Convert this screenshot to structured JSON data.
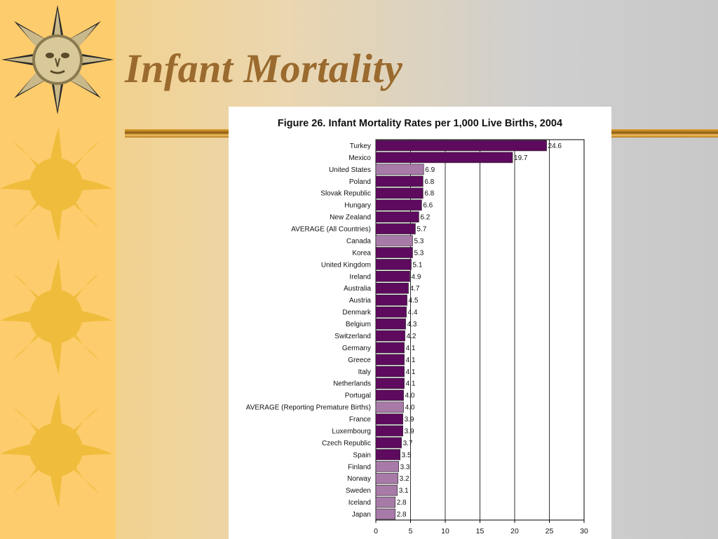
{
  "slide": {
    "title": "Infant Mortality"
  },
  "figure": {
    "title": "Figure 26.  Infant Mortality Rates per 1,000 Live Births, 2004"
  },
  "colors": {
    "dark_bar": "#5e0a5e",
    "light_bar": "#a87aa8",
    "title": "#9a6a2e",
    "sun": "#f0bc3c"
  },
  "chart_data": {
    "type": "bar",
    "orientation": "horizontal",
    "title": "Figure 26.  Infant Mortality Rates per 1,000 Live Births, 2004",
    "xlim": [
      0,
      30
    ],
    "x_ticks": [
      0,
      5,
      10,
      15,
      20,
      25,
      30
    ],
    "grid": true,
    "data_labels": true,
    "categories": [
      "Turkey",
      "Mexico",
      "United States",
      "Poland",
      "Slovak Republic",
      "Hungary",
      "New Zealand",
      "AVERAGE (All Countries)",
      "Canada",
      "Korea",
      "United Kingdom",
      "Ireland",
      "Australia",
      "Austria",
      "Denmark",
      "Belgium",
      "Switzerland",
      "Germany",
      "Greece",
      "Italy",
      "Netherlands",
      "Portugal",
      "AVERAGE (Reporting Premature Births)",
      "France",
      "Luxembourg",
      "Czech Republic",
      "Spain",
      "Finland",
      "Norway",
      "Sweden",
      "Iceland",
      "Japan"
    ],
    "values": [
      24.6,
      19.7,
      6.9,
      6.8,
      6.8,
      6.6,
      6.2,
      5.7,
      5.3,
      5.3,
      5.1,
      4.9,
      4.7,
      4.5,
      4.4,
      4.3,
      4.2,
      4.1,
      4.1,
      4.1,
      4.1,
      4.0,
      4.0,
      3.9,
      3.9,
      3.7,
      3.5,
      3.3,
      3.2,
      3.1,
      2.8,
      2.8
    ],
    "value_labels": [
      "24.6",
      "19.7",
      "6.9",
      "6.8",
      "6.8",
      "6.6",
      "6.2",
      "5.7",
      "5.3",
      "5.3",
      "5.1",
      "4.9",
      "4.7",
      "4.5",
      "4.4",
      "4.3",
      "4.2",
      "4.1",
      "4.1",
      "4.1",
      "4.1",
      "4.0",
      "4.0",
      "3.9",
      "3.9",
      "3.7",
      "3.5",
      "3.3",
      "3.2",
      "3.1",
      "2.8",
      "2.8"
    ],
    "bar_style": [
      "dark",
      "dark",
      "light",
      "dark",
      "dark",
      "dark",
      "dark",
      "dark",
      "light",
      "dark",
      "dark",
      "dark",
      "dark",
      "dark",
      "dark",
      "dark",
      "dark",
      "dark",
      "dark",
      "dark",
      "dark",
      "dark",
      "light",
      "dark",
      "dark",
      "dark",
      "dark",
      "light",
      "light",
      "light",
      "light",
      "light"
    ]
  }
}
